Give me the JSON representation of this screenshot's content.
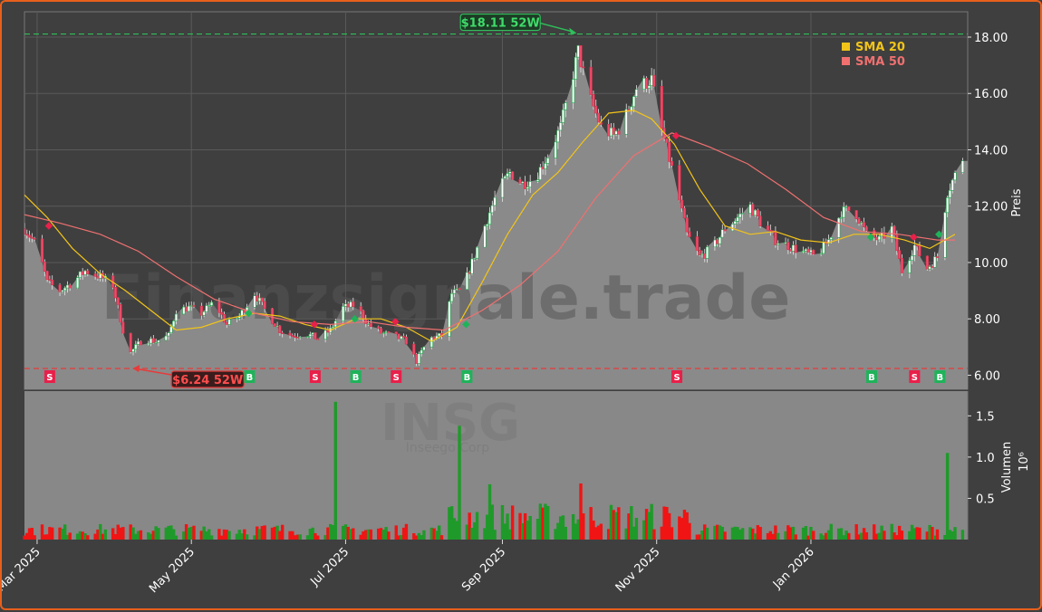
{
  "chart_data": {
    "type": "candlestick",
    "symbol": "INSG",
    "company": "Inseego Corp",
    "watermark": "Finanzsignale.trade",
    "ylabel": "Preis",
    "vol_label": "Volumen",
    "vol_exp": "10⁶",
    "ylim": [
      5.5,
      18.9
    ],
    "yticks": [
      6,
      8,
      10,
      12,
      14,
      16,
      18
    ],
    "yticks_text": [
      "6.00",
      "8.00",
      "10.00",
      "12.00",
      "14.00",
      "16.00",
      "18.00"
    ],
    "vol_ticks": [
      0.5,
      1.0,
      1.5
    ],
    "vol_ticks_text": [
      "0.5",
      "1.0",
      "1.5"
    ],
    "vol_max": 1.8,
    "x_range": [
      "2025-02-24",
      "2026-03-04"
    ],
    "x_labels": [
      {
        "date": "2025-03-01",
        "text": "Mar 2025"
      },
      {
        "date": "2025-05-01",
        "text": "May 2025"
      },
      {
        "date": "2025-07-01",
        "text": "Jul 2025"
      },
      {
        "date": "2025-09-01",
        "text": "Sep 2025"
      },
      {
        "date": "2025-11-01",
        "text": "Nov 2025"
      },
      {
        "date": "2026-01-01",
        "text": "Jan 2026"
      }
    ],
    "high_52w": {
      "value": 18.11,
      "text": "$18.11 52W",
      "date": "2025-10-01"
    },
    "low_52w": {
      "value": 6.24,
      "text": "$6.24 52W",
      "date": "2025-04-07"
    },
    "legend": [
      {
        "label": "SMA 20",
        "color": "#f2c419"
      },
      {
        "label": "SMA 50",
        "color": "#f07070"
      }
    ],
    "close_points": [
      [
        "2025-02-24",
        11.2
      ],
      [
        "2025-03-01",
        10.6
      ],
      [
        "2025-03-05",
        9.3
      ],
      [
        "2025-03-10",
        9.0
      ],
      [
        "2025-03-15",
        9.3
      ],
      [
        "2025-03-20",
        9.7
      ],
      [
        "2025-03-26",
        9.5
      ],
      [
        "2025-03-31",
        9.2
      ],
      [
        "2025-04-04",
        7.6
      ],
      [
        "2025-04-07",
        6.8
      ],
      [
        "2025-04-12",
        7.3
      ],
      [
        "2025-04-17",
        7.2
      ],
      [
        "2025-04-22",
        7.4
      ],
      [
        "2025-04-25",
        8.3
      ],
      [
        "2025-04-30",
        8.4
      ],
      [
        "2025-05-05",
        8.2
      ],
      [
        "2025-05-10",
        8.6
      ],
      [
        "2025-05-15",
        7.8
      ],
      [
        "2025-05-20",
        8.1
      ],
      [
        "2025-05-26",
        8.9
      ],
      [
        "2025-05-31",
        8.2
      ],
      [
        "2025-06-05",
        7.6
      ],
      [
        "2025-06-10",
        7.4
      ],
      [
        "2025-06-15",
        7.5
      ],
      [
        "2025-06-20",
        7.3
      ],
      [
        "2025-06-25",
        7.6
      ],
      [
        "2025-06-30",
        8.4
      ],
      [
        "2025-07-05",
        8.5
      ],
      [
        "2025-07-10",
        7.8
      ],
      [
        "2025-07-15",
        7.5
      ],
      [
        "2025-07-20",
        7.4
      ],
      [
        "2025-07-25",
        7.2
      ],
      [
        "2025-07-29",
        6.5
      ],
      [
        "2025-08-03",
        7.3
      ],
      [
        "2025-08-08",
        7.4
      ],
      [
        "2025-08-12",
        8.9
      ],
      [
        "2025-08-16",
        9.0
      ],
      [
        "2025-08-20",
        10.0
      ],
      [
        "2025-08-25",
        11.3
      ],
      [
        "2025-08-30",
        12.5
      ],
      [
        "2025-09-04",
        13.2
      ],
      [
        "2025-09-09",
        12.8
      ],
      [
        "2025-09-14",
        13.0
      ],
      [
        "2025-09-19",
        13.8
      ],
      [
        "2025-09-24",
        14.8
      ],
      [
        "2025-09-28",
        16.3
      ],
      [
        "2025-10-01",
        17.5
      ],
      [
        "2025-10-05",
        16.0
      ],
      [
        "2025-10-10",
        14.8
      ],
      [
        "2025-10-15",
        14.5
      ],
      [
        "2025-10-19",
        15.0
      ],
      [
        "2025-10-24",
        16.2
      ],
      [
        "2025-10-30",
        16.5
      ],
      [
        "2025-11-03",
        14.7
      ],
      [
        "2025-11-08",
        13.0
      ],
      [
        "2025-11-13",
        11.0
      ],
      [
        "2025-11-18",
        10.2
      ],
      [
        "2025-11-23",
        10.5
      ],
      [
        "2025-11-28",
        11.2
      ],
      [
        "2025-12-03",
        11.6
      ],
      [
        "2025-12-08",
        12.0
      ],
      [
        "2025-12-13",
        11.3
      ],
      [
        "2025-12-18",
        10.8
      ],
      [
        "2025-12-23",
        10.6
      ],
      [
        "2025-12-28",
        10.4
      ],
      [
        "2026-01-03",
        10.2
      ],
      [
        "2026-01-08",
        10.8
      ],
      [
        "2026-01-13",
        11.8
      ],
      [
        "2026-01-18",
        11.9
      ],
      [
        "2026-01-23",
        11.0
      ],
      [
        "2026-01-28",
        10.8
      ],
      [
        "2026-02-02",
        11.2
      ],
      [
        "2026-02-06",
        9.7
      ],
      [
        "2026-02-11",
        10.6
      ],
      [
        "2026-02-16",
        9.8
      ],
      [
        "2026-02-20",
        10.2
      ],
      [
        "2026-02-24",
        12.5
      ],
      [
        "2026-03-02",
        13.7
      ]
    ],
    "sma20_points": [
      [
        "2025-02-24",
        12.4
      ],
      [
        "2025-03-05",
        11.6
      ],
      [
        "2025-03-15",
        10.5
      ],
      [
        "2025-03-26",
        9.6
      ],
      [
        "2025-04-05",
        9.0
      ],
      [
        "2025-04-15",
        8.3
      ],
      [
        "2025-04-25",
        7.6
      ],
      [
        "2025-05-05",
        7.7
      ],
      [
        "2025-05-15",
        8.0
      ],
      [
        "2025-05-26",
        8.2
      ],
      [
        "2025-06-05",
        8.1
      ],
      [
        "2025-06-15",
        7.8
      ],
      [
        "2025-06-25",
        7.6
      ],
      [
        "2025-07-05",
        8.0
      ],
      [
        "2025-07-15",
        8.0
      ],
      [
        "2025-07-25",
        7.7
      ],
      [
        "2025-08-04",
        7.2
      ],
      [
        "2025-08-14",
        7.7
      ],
      [
        "2025-08-24",
        9.3
      ],
      [
        "2025-09-03",
        11.0
      ],
      [
        "2025-09-13",
        12.4
      ],
      [
        "2025-09-23",
        13.2
      ],
      [
        "2025-10-03",
        14.3
      ],
      [
        "2025-10-13",
        15.3
      ],
      [
        "2025-10-23",
        15.4
      ],
      [
        "2025-10-30",
        15.1
      ],
      [
        "2025-11-08",
        14.2
      ],
      [
        "2025-11-18",
        12.6
      ],
      [
        "2025-11-28",
        11.3
      ],
      [
        "2025-12-08",
        11.0
      ],
      [
        "2025-12-18",
        11.1
      ],
      [
        "2025-12-28",
        10.8
      ],
      [
        "2026-01-08",
        10.7
      ],
      [
        "2026-01-18",
        11.0
      ],
      [
        "2026-01-28",
        11.0
      ],
      [
        "2026-02-07",
        10.8
      ],
      [
        "2026-02-17",
        10.5
      ],
      [
        "2026-02-27",
        11.0
      ]
    ],
    "sma50_points": [
      [
        "2025-02-24",
        11.7
      ],
      [
        "2025-03-10",
        11.4
      ],
      [
        "2025-03-26",
        11.0
      ],
      [
        "2025-04-10",
        10.4
      ],
      [
        "2025-04-25",
        9.5
      ],
      [
        "2025-05-10",
        8.7
      ],
      [
        "2025-05-26",
        8.2
      ],
      [
        "2025-06-10",
        7.9
      ],
      [
        "2025-06-25",
        7.8
      ],
      [
        "2025-07-10",
        7.9
      ],
      [
        "2025-07-25",
        7.7
      ],
      [
        "2025-08-09",
        7.6
      ],
      [
        "2025-08-24",
        8.3
      ],
      [
        "2025-09-08",
        9.2
      ],
      [
        "2025-09-23",
        10.4
      ],
      [
        "2025-10-08",
        12.3
      ],
      [
        "2025-10-23",
        13.8
      ],
      [
        "2025-11-07",
        14.6
      ],
      [
        "2025-11-22",
        14.1
      ],
      [
        "2025-12-07",
        13.5
      ],
      [
        "2025-12-22",
        12.6
      ],
      [
        "2026-01-06",
        11.6
      ],
      [
        "2026-01-21",
        11.1
      ],
      [
        "2026-02-05",
        11.0
      ],
      [
        "2026-02-20",
        10.8
      ],
      [
        "2026-02-27",
        10.8
      ]
    ],
    "signals": [
      {
        "date": "2025-03-06",
        "type": "S",
        "price": 11.3
      },
      {
        "date": "2025-05-24",
        "type": "B",
        "price": 8.2
      },
      {
        "date": "2025-06-19",
        "type": "S",
        "price": 7.8
      },
      {
        "date": "2025-07-05",
        "type": "B",
        "price": 8.0
      },
      {
        "date": "2025-07-21",
        "type": "S",
        "price": 7.9
      },
      {
        "date": "2025-08-18",
        "type": "B",
        "price": 7.8
      },
      {
        "date": "2025-11-09",
        "type": "S",
        "price": 14.5
      },
      {
        "date": "2026-01-25",
        "type": "B",
        "price": 10.9
      },
      {
        "date": "2026-02-11",
        "type": "S",
        "price": 10.9
      },
      {
        "date": "2026-02-21",
        "type": "B",
        "price": 11.0
      }
    ],
    "volume_spikes": [
      {
        "date": "2025-06-27",
        "value": 1.67,
        "dir": "up"
      },
      {
        "date": "2025-08-15",
        "value": 1.38,
        "dir": "up"
      },
      {
        "date": "2026-02-24",
        "value": 1.05,
        "dir": "up"
      },
      {
        "date": "2025-08-27",
        "value": 0.67,
        "dir": "up"
      },
      {
        "date": "2025-10-02",
        "value": 0.68,
        "dir": "down"
      }
    ]
  }
}
